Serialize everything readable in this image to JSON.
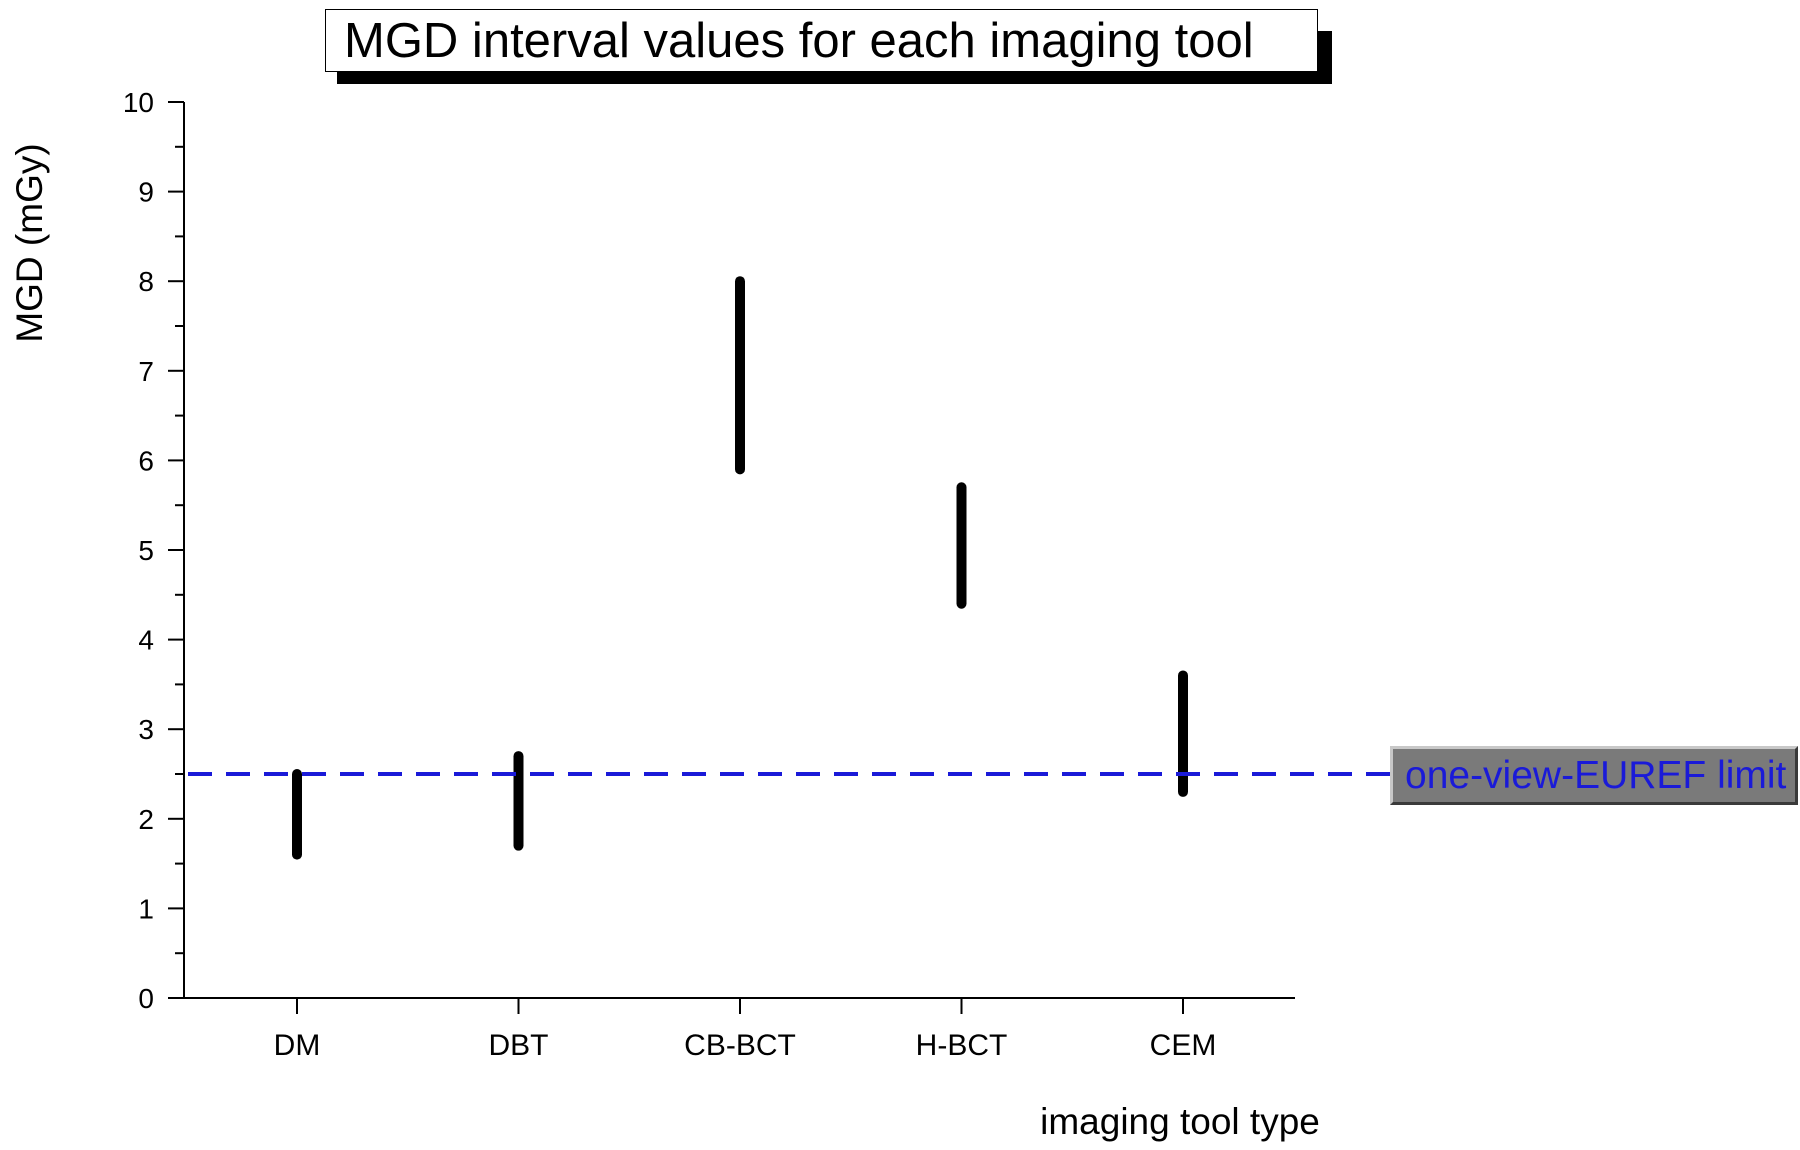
{
  "chart_data": {
    "type": "interval",
    "title": "MGD interval values for each imaging tool",
    "xlabel": "imaging tool type",
    "ylabel": "MGD (mGy)",
    "ylim": [
      0,
      10
    ],
    "yticks": [
      "0",
      "1",
      "2",
      "3",
      "4",
      "5",
      "6",
      "7",
      "8",
      "9",
      "10"
    ],
    "categories": [
      "DM",
      "DBT",
      "CB-BCT",
      "H-BCT",
      "CEM"
    ],
    "intervals": [
      {
        "category": "DM",
        "low": 1.6,
        "high": 2.5
      },
      {
        "category": "DBT",
        "low": 1.7,
        "high": 2.7
      },
      {
        "category": "CB-BCT",
        "low": 5.9,
        "high": 8.0
      },
      {
        "category": "H-BCT",
        "low": 4.4,
        "high": 5.7
      },
      {
        "category": "CEM",
        "low": 2.3,
        "high": 3.6
      }
    ],
    "reference_line": {
      "value": 2.5,
      "label": "one-view-EUREF limit",
      "color": "#1a1ad8",
      "style": "dashed"
    },
    "interval_color": "#000000",
    "grid": false
  }
}
